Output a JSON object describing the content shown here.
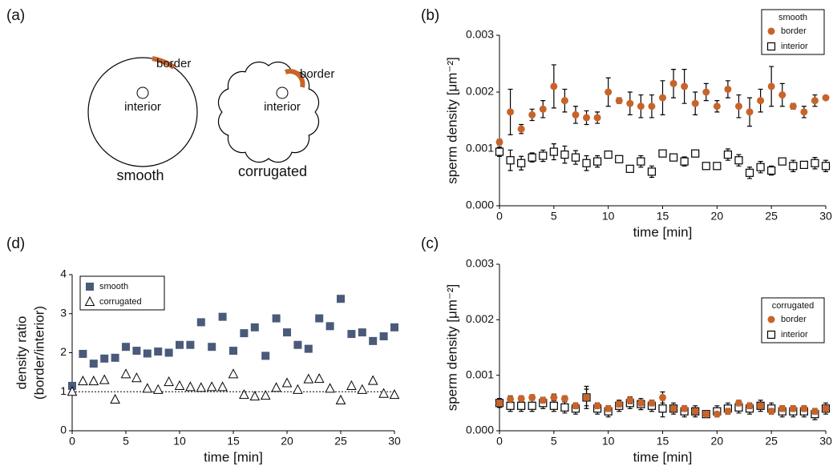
{
  "diagram": {
    "label": "(a)",
    "shapes": [
      {
        "name": "smooth",
        "border": "border",
        "interior": "interior"
      },
      {
        "name": "corrugated",
        "border": "border",
        "interior": "interior"
      }
    ]
  },
  "chart_data": [
    {
      "type": "errorbar-scatter",
      "label": "(b)",
      "xlabel": "time [min]",
      "ylabel": "sperm density  [μm⁻²]",
      "x": [
        0,
        1,
        2,
        3,
        4,
        5,
        6,
        7,
        8,
        9,
        10,
        11,
        12,
        13,
        14,
        15,
        16,
        17,
        18,
        19,
        20,
        21,
        22,
        23,
        24,
        25,
        26,
        27,
        28,
        29,
        30
      ],
      "xlim": [
        0,
        30
      ],
      "xticks": [
        0,
        5,
        10,
        15,
        20,
        25,
        30
      ],
      "ylim": [
        0,
        0.003
      ],
      "yticks": [
        {
          "value": 0,
          "label": "0.000"
        },
        0.001,
        0.002,
        0.003
      ],
      "legend_title": "smooth",
      "legend_loc": "upper right",
      "series": [
        {
          "name": "border",
          "color": "#c8642a",
          "marker": "circle",
          "values": [
            0.00112,
            0.00165,
            0.00135,
            0.0016,
            0.0017,
            0.0021,
            0.00185,
            0.0016,
            0.00155,
            0.00155,
            0.002,
            0.00185,
            0.0018,
            0.00175,
            0.00175,
            0.0019,
            0.00215,
            0.0021,
            0.0018,
            0.002,
            0.00175,
            0.00205,
            0.00175,
            0.00165,
            0.00185,
            0.0021,
            0.00195,
            0.00175,
            0.00165,
            0.00185,
            0.0019
          ],
          "errors": [
            5e-05,
            0.0004,
            8e-05,
            0.0001,
            0.00015,
            0.00038,
            0.0002,
            0.00015,
            0.00012,
            0.0001,
            0.00025,
            5e-05,
            0.0002,
            0.0002,
            0.0002,
            0.0003,
            0.00025,
            0.0003,
            0.0002,
            0.00015,
            0.0001,
            0.00015,
            0.0002,
            0.00025,
            0.0002,
            0.00035,
            0.0002,
            5e-05,
            0.0001,
            0.0001,
            3e-05
          ]
        },
        {
          "name": "interior",
          "color": "#000000",
          "marker": "open-square",
          "values": [
            0.00095,
            0.0008,
            0.00075,
            0.00085,
            0.00088,
            0.00095,
            0.0009,
            0.00085,
            0.00075,
            0.00078,
            0.0009,
            0.00082,
            0.00065,
            0.00078,
            0.0006,
            0.00092,
            0.00085,
            0.00078,
            0.00092,
            0.0007,
            0.0007,
            0.0009,
            0.0008,
            0.00058,
            0.00068,
            0.00062,
            0.00078,
            0.0007,
            0.00072,
            0.00075,
            0.0007
          ],
          "errors": [
            8e-05,
            0.00018,
            0.00012,
            8e-05,
            0.0001,
            0.00014,
            0.00015,
            0.00012,
            0.00013,
            0.0001,
            5e-05,
            6e-05,
            4e-05,
            0.0001,
            0.0001,
            3e-05,
            4e-05,
            8e-05,
            4e-05,
            5e-05,
            5e-05,
            0.0001,
            0.0001,
            0.0001,
            0.0001,
            8e-05,
            4e-05,
            0.0001,
            5e-05,
            0.0001,
            0.0001
          ]
        }
      ]
    },
    {
      "type": "errorbar-scatter",
      "label": "(c)",
      "xlabel": "time [min]",
      "ylabel": "sperm density  [μm⁻²]",
      "x": [
        0,
        1,
        2,
        3,
        4,
        5,
        6,
        7,
        8,
        9,
        10,
        11,
        12,
        13,
        14,
        15,
        16,
        17,
        18,
        19,
        20,
        21,
        22,
        23,
        24,
        25,
        26,
        27,
        28,
        29,
        30
      ],
      "xlim": [
        0,
        30
      ],
      "xticks": [
        0,
        5,
        10,
        15,
        20,
        25,
        30
      ],
      "ylim": [
        0,
        0.003
      ],
      "yticks": [
        {
          "value": 0,
          "label": "0.000"
        },
        0.001,
        0.002,
        0.003
      ],
      "legend_title": "corrugated",
      "legend_loc": "upper right",
      "series": [
        {
          "name": "border",
          "color": "#c8642a",
          "marker": "circle",
          "values": [
            0.0005,
            0.00057,
            0.00058,
            0.0006,
            0.00055,
            0.0006,
            0.00058,
            0.00045,
            0.0006,
            0.00045,
            0.0004,
            0.00048,
            0.00055,
            0.0005,
            0.0005,
            0.0006,
            0.0004,
            0.0004,
            0.00035,
            0.0003,
            0.0003,
            0.00035,
            0.0005,
            0.00045,
            0.00045,
            0.00035,
            0.0004,
            0.0004,
            0.0004,
            0.00035,
            0.0004
          ],
          "errors": [
            3e-05,
            6e-05,
            5e-05,
            5e-05,
            5e-05,
            6e-05,
            5e-05,
            5e-05,
            0.00015,
            5e-05,
            5e-05,
            5e-05,
            6e-05,
            5e-05,
            5e-05,
            0.0001,
            5e-05,
            5e-05,
            5e-05,
            3e-05,
            3e-05,
            5e-05,
            5e-05,
            5e-05,
            5e-05,
            5e-05,
            5e-05,
            5e-05,
            5e-05,
            5e-05,
            3e-05
          ]
        },
        {
          "name": "interior",
          "color": "#000000",
          "marker": "open-square",
          "values": [
            0.0005,
            0.00045,
            0.00045,
            0.00045,
            0.0005,
            0.00045,
            0.00042,
            0.0004,
            0.0006,
            0.0004,
            0.00035,
            0.00045,
            0.0005,
            0.00048,
            0.00045,
            0.0004,
            0.0004,
            0.00035,
            0.00035,
            0.0003,
            0.00035,
            0.0004,
            0.00042,
            0.0004,
            0.00045,
            0.0004,
            0.00035,
            0.00035,
            0.00035,
            0.0003,
            0.0004
          ],
          "errors": [
            8e-05,
            0.0001,
            0.0001,
            0.0001,
            0.0001,
            0.0001,
            0.0001,
            0.0001,
            0.0002,
            0.0001,
            0.0001,
            0.0001,
            0.0001,
            0.0001,
            0.0001,
            0.00015,
            0.0001,
            0.0001,
            0.0001,
            5e-05,
            0.0001,
            0.0001,
            0.0001,
            0.0001,
            0.0001,
            0.0001,
            0.0001,
            0.0001,
            0.0001,
            0.0001,
            0.0001
          ]
        }
      ]
    },
    {
      "type": "scatter",
      "label": "(d)",
      "xlabel": "time [min]",
      "ylabel": [
        "density ratio",
        "(border/interior)"
      ],
      "x": [
        0,
        1,
        2,
        3,
        4,
        5,
        6,
        7,
        8,
        9,
        10,
        11,
        12,
        13,
        14,
        15,
        16,
        17,
        18,
        19,
        20,
        21,
        22,
        23,
        24,
        25,
        26,
        27,
        28,
        29,
        30
      ],
      "xlim": [
        0,
        30
      ],
      "xticks": [
        0,
        5,
        10,
        15,
        20,
        25,
        30
      ],
      "ylim": [
        0,
        4
      ],
      "yticks": [
        0,
        1,
        2,
        3,
        4
      ],
      "hline": 1,
      "legend_loc": "upper left",
      "series": [
        {
          "name": "smooth",
          "color": "#4a5a7a",
          "marker": "square",
          "values": [
            1.15,
            1.97,
            1.72,
            1.85,
            1.87,
            2.15,
            2.05,
            1.98,
            2.03,
            2.0,
            2.2,
            2.2,
            2.78,
            2.15,
            2.92,
            2.05,
            2.5,
            2.65,
            1.92,
            2.88,
            2.52,
            2.2,
            2.1,
            2.88,
            2.68,
            3.38,
            2.48,
            2.52,
            2.3,
            2.42,
            2.65
          ]
        },
        {
          "name": "corrugated",
          "color": "#000000",
          "marker": "open-triangle",
          "values": [
            1.0,
            1.27,
            1.27,
            1.3,
            0.8,
            1.45,
            1.35,
            1.08,
            1.05,
            1.25,
            1.15,
            1.12,
            1.1,
            1.12,
            1.12,
            1.45,
            0.92,
            0.88,
            0.9,
            1.1,
            1.22,
            1.05,
            1.32,
            1.33,
            1.08,
            0.78,
            1.15,
            1.05,
            1.28,
            0.95,
            0.92
          ]
        }
      ]
    }
  ]
}
